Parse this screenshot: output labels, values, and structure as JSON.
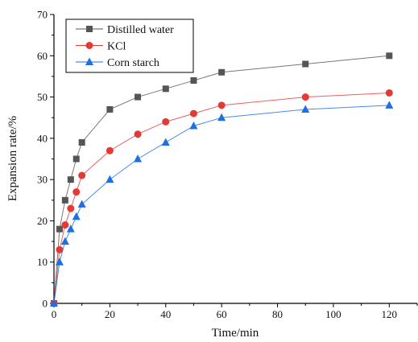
{
  "chart_data": {
    "type": "line",
    "title": "",
    "xlabel": "Time/min",
    "ylabel": "Expansion rate/%",
    "xlim": [
      0,
      130
    ],
    "ylim": [
      0,
      70
    ],
    "xticks": [
      0,
      20,
      40,
      60,
      80,
      100,
      120
    ],
    "yticks": [
      0,
      10,
      20,
      30,
      40,
      50,
      60,
      70
    ],
    "grid": false,
    "legend_position": "top-left",
    "series": [
      {
        "name": "Distilled water",
        "color": "#555555",
        "marker": "square",
        "x": [
          0,
          2,
          4,
          6,
          8,
          10,
          20,
          30,
          40,
          50,
          60,
          90,
          120
        ],
        "y": [
          0,
          18,
          25,
          30,
          35,
          39,
          47,
          50,
          52,
          54,
          56,
          58,
          60
        ]
      },
      {
        "name": "KCl",
        "color": "#e53935",
        "marker": "circle",
        "x": [
          0,
          2,
          4,
          6,
          8,
          10,
          20,
          30,
          40,
          50,
          60,
          90,
          120
        ],
        "y": [
          0,
          13,
          19,
          23,
          27,
          31,
          37,
          41,
          44,
          46,
          48,
          50,
          51
        ]
      },
      {
        "name": "Corn starch",
        "color": "#1e6fe0",
        "marker": "triangle",
        "x": [
          0,
          2,
          4,
          6,
          8,
          10,
          20,
          30,
          40,
          50,
          60,
          90,
          120
        ],
        "y": [
          0,
          10,
          15,
          18,
          21,
          24,
          30,
          35,
          39,
          43,
          45,
          47,
          48
        ]
      }
    ]
  }
}
